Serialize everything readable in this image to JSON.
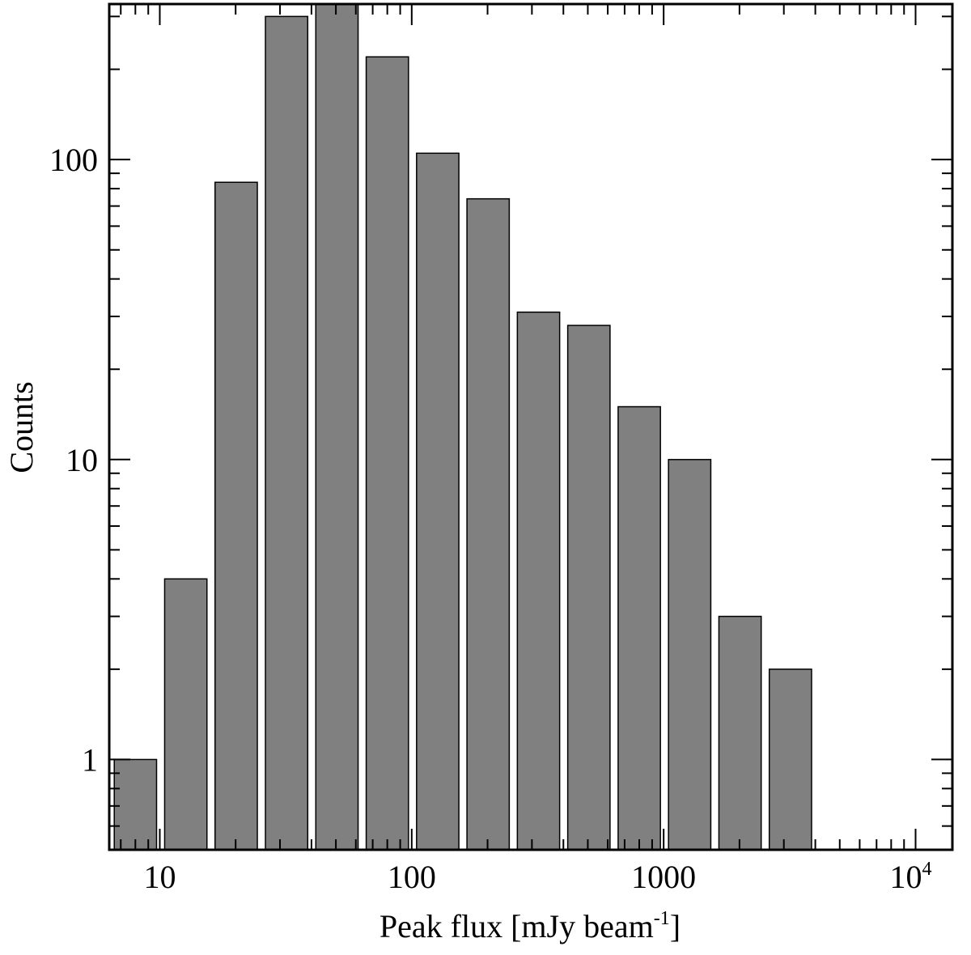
{
  "chart_data": {
    "type": "bar",
    "title": "",
    "xlabel": "Peak flux [mJy beam",
    "xlabel_sup": "-1",
    "xlabel_close": "]",
    "ylabel": "Counts",
    "x_scale": "log",
    "y_scale": "log",
    "xlim": [
      6.3,
      14000
    ],
    "ylim": [
      0.5,
      330
    ],
    "bar_color": "#808080",
    "bin_width_factor": 1.585,
    "bins": [
      {
        "x_start": 6.31,
        "count": 1
      },
      {
        "x_start": 10.0,
        "count": 4
      },
      {
        "x_start": 15.85,
        "count": 84
      },
      {
        "x_start": 25.12,
        "count": 300
      },
      {
        "x_start": 39.81,
        "count": 400
      },
      {
        "x_start": 63.1,
        "count": 220
      },
      {
        "x_start": 100.0,
        "count": 105
      },
      {
        "x_start": 158.5,
        "count": 74
      },
      {
        "x_start": 251.2,
        "count": 31
      },
      {
        "x_start": 398.1,
        "count": 28
      },
      {
        "x_start": 631.0,
        "count": 15
      },
      {
        "x_start": 1000.0,
        "count": 10
      },
      {
        "x_start": 1585.0,
        "count": 3
      },
      {
        "x_start": 2512.0,
        "count": 2
      }
    ],
    "x_ticks": [
      {
        "value": 10,
        "label": "10"
      },
      {
        "value": 100,
        "label": "100"
      },
      {
        "value": 1000,
        "label": "1000"
      },
      {
        "value": 10000,
        "label": "10",
        "sup": "4"
      }
    ],
    "y_ticks": [
      {
        "value": 1,
        "label": "1"
      },
      {
        "value": 10,
        "label": "10"
      },
      {
        "value": 100,
        "label": "100"
      }
    ],
    "grid": false,
    "legend": "none"
  }
}
